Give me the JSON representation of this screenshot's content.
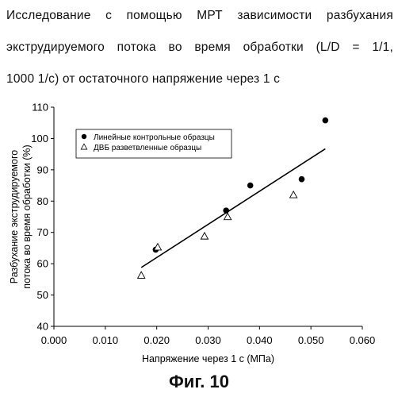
{
  "caption": {
    "line1": "Исследование с помощью МРТ зависимости разбухания",
    "line2": "экструдируемого потока во время обработки (L/D = 1/1,",
    "line3": "1000 1/с) от остаточного напряжение через 1 с"
  },
  "figure_label": "Фиг. 10",
  "chart_data": {
    "type": "scatter",
    "title": "",
    "xlabel": "Напряжение через 1 с (МПа)",
    "ylabel_line1": "Разбухание экструдируемого",
    "ylabel_line2": "потока во время обработки (%)",
    "xlim": [
      0.0,
      0.06
    ],
    "ylim": [
      40,
      110
    ],
    "x_ticks": [
      "0.000",
      "0.010",
      "0.020",
      "0.030",
      "0.040",
      "0.050",
      "0.060"
    ],
    "y_ticks": [
      "40",
      "50",
      "60",
      "70",
      "80",
      "90",
      "100",
      "110"
    ],
    "grid": false,
    "legend_placement": "top-left",
    "series": [
      {
        "name": "Линейные контрольные образцы",
        "marker": "circle-filled",
        "points": [
          [
            0.0198,
            64.5
          ],
          [
            0.0335,
            77
          ],
          [
            0.0382,
            85
          ],
          [
            0.0482,
            87
          ],
          [
            0.0528,
            105.8
          ]
        ]
      },
      {
        "name": "ДВБ разветвленные образцы",
        "marker": "triangle-open",
        "points": [
          [
            0.017,
            56.3
          ],
          [
            0.0202,
            65.3
          ],
          [
            0.0293,
            68.8
          ],
          [
            0.0338,
            75
          ],
          [
            0.0466,
            82
          ]
        ]
      }
    ],
    "trendline": {
      "x": [
        0.017,
        0.0528
      ],
      "y": [
        58.8,
        96.7
      ]
    }
  }
}
